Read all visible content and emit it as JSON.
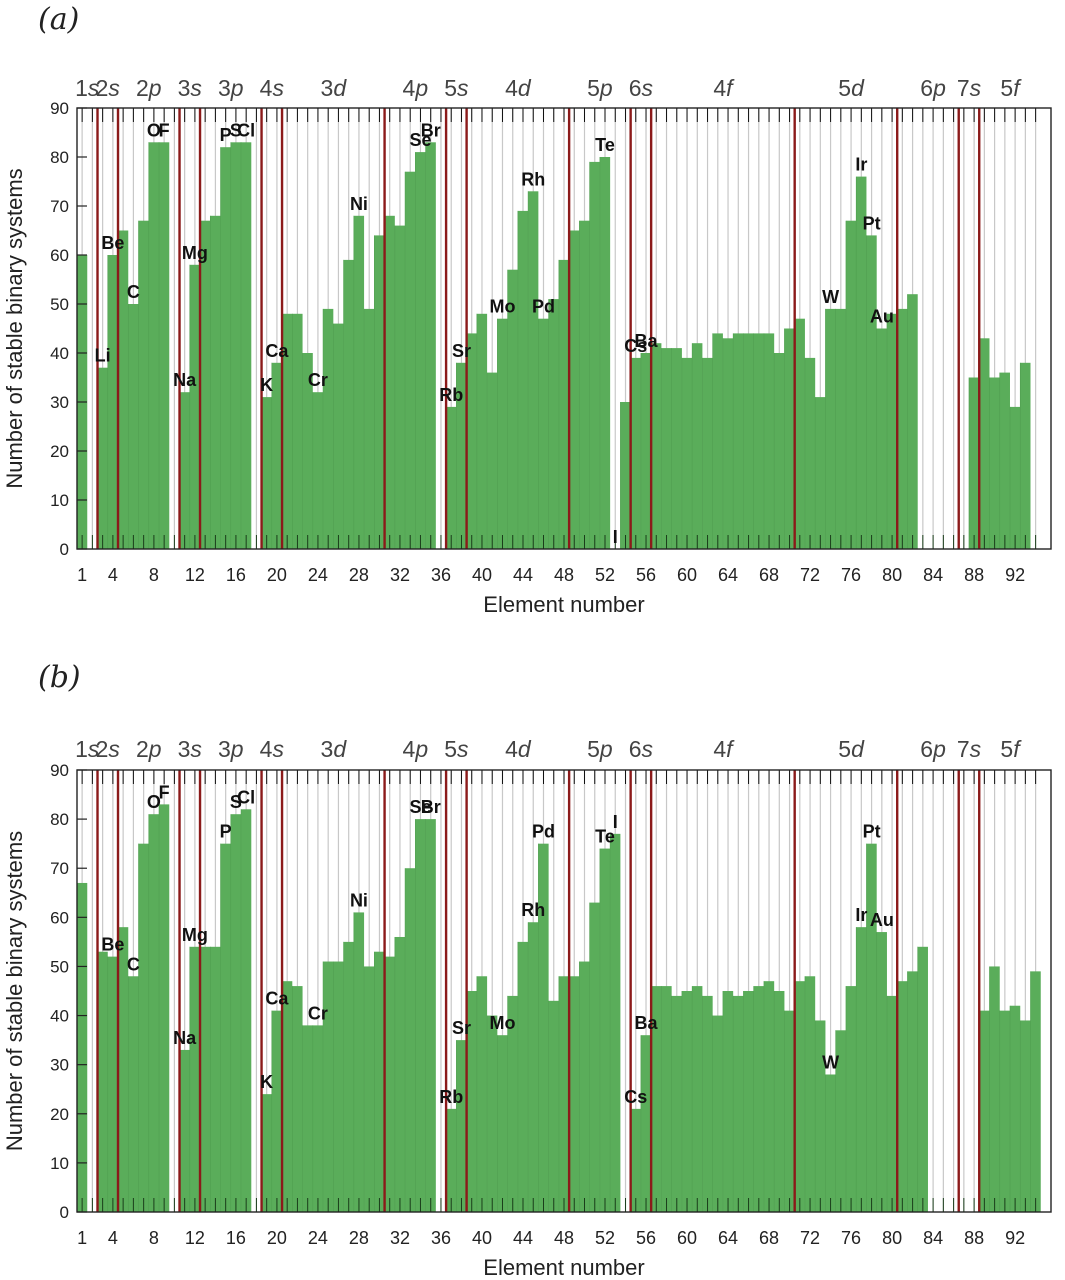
{
  "panels": [
    {
      "label": "(a)"
    },
    {
      "label": "(b)"
    }
  ],
  "chart_data": [
    {
      "type": "bar",
      "panel": "(a)",
      "title": "",
      "xlabel": "Element number",
      "ylabel": "Number of stable binary systems",
      "ylim": [
        0,
        90
      ],
      "yticks": [
        0,
        10,
        20,
        30,
        40,
        50,
        60,
        70,
        80,
        90
      ],
      "xticks": [
        1,
        4,
        8,
        12,
        16,
        20,
        24,
        28,
        32,
        36,
        40,
        44,
        48,
        52,
        56,
        60,
        64,
        68,
        72,
        76,
        80,
        84,
        88,
        92
      ],
      "bar_color": "#5aad5a",
      "shell_boundary_color": "#8b1a1a",
      "shell_boundaries_after_element": [
        2,
        4,
        10,
        12,
        18,
        20,
        30,
        36,
        38,
        48,
        54,
        56,
        70,
        80,
        86,
        88
      ],
      "shell_labels": [
        {
          "text": "1s",
          "center": 1.5
        },
        {
          "text": "2s",
          "center": 3.5
        },
        {
          "text": "2p",
          "center": 7.5
        },
        {
          "text": "3s",
          "center": 11.5
        },
        {
          "text": "3p",
          "center": 15.5
        },
        {
          "text": "4s",
          "center": 19.5
        },
        {
          "text": "3d",
          "center": 25.5
        },
        {
          "text": "4p",
          "center": 33.5
        },
        {
          "text": "5s",
          "center": 37.5
        },
        {
          "text": "4d",
          "center": 43.5
        },
        {
          "text": "5p",
          "center": 51.5
        },
        {
          "text": "6s",
          "center": 55.5
        },
        {
          "text": "4f",
          "center": 63.5
        },
        {
          "text": "5d",
          "center": 76
        },
        {
          "text": "6p",
          "center": 84
        },
        {
          "text": "7s",
          "center": 87.5
        },
        {
          "text": "5f",
          "center": 91.5
        }
      ],
      "x": [
        1,
        2,
        3,
        4,
        5,
        6,
        7,
        8,
        9,
        10,
        11,
        12,
        13,
        14,
        15,
        16,
        17,
        18,
        19,
        20,
        21,
        22,
        23,
        24,
        25,
        26,
        27,
        28,
        29,
        30,
        31,
        32,
        33,
        34,
        35,
        36,
        37,
        38,
        39,
        40,
        41,
        42,
        43,
        44,
        45,
        46,
        47,
        48,
        49,
        50,
        51,
        52,
        53,
        54,
        55,
        56,
        57,
        58,
        59,
        60,
        61,
        62,
        63,
        64,
        65,
        66,
        67,
        68,
        69,
        70,
        71,
        72,
        73,
        74,
        75,
        76,
        77,
        78,
        79,
        80,
        81,
        82,
        83,
        84,
        85,
        86,
        87,
        88,
        89,
        90,
        91,
        92,
        93,
        94
      ],
      "values": [
        60,
        0,
        37,
        60,
        65,
        50,
        67,
        83,
        83,
        0,
        32,
        58,
        67,
        68,
        82,
        83,
        83,
        0,
        31,
        38,
        48,
        48,
        40,
        32,
        49,
        46,
        59,
        68,
        49,
        64,
        68,
        66,
        77,
        81,
        83,
        0,
        29,
        38,
        44,
        48,
        36,
        47,
        57,
        69,
        73,
        47,
        51,
        59,
        65,
        67,
        79,
        80,
        0,
        30,
        39,
        40,
        42,
        41,
        41,
        39,
        42,
        39,
        44,
        43,
        44,
        44,
        44,
        44,
        40,
        45,
        47,
        39,
        31,
        49,
        49,
        67,
        76,
        64,
        45,
        48,
        49,
        52,
        0,
        0,
        0,
        0,
        0,
        35,
        43,
        35,
        36,
        29,
        38,
        0
      ],
      "element_labels": [
        {
          "text": "Li",
          "x": 3
        },
        {
          "text": "Be",
          "x": 4
        },
        {
          "text": "C",
          "x": 6
        },
        {
          "text": "O",
          "x": 8
        },
        {
          "text": "F",
          "x": 9
        },
        {
          "text": "Na",
          "x": 11
        },
        {
          "text": "Mg",
          "x": 12
        },
        {
          "text": "P",
          "x": 15
        },
        {
          "text": "S",
          "x": 16
        },
        {
          "text": "Cl",
          "x": 17
        },
        {
          "text": "K",
          "x": 19
        },
        {
          "text": "Ca",
          "x": 20
        },
        {
          "text": "Cr",
          "x": 24
        },
        {
          "text": "Ni",
          "x": 28
        },
        {
          "text": "Se",
          "x": 34
        },
        {
          "text": "Br",
          "x": 35
        },
        {
          "text": "Rb",
          "x": 37
        },
        {
          "text": "Sr",
          "x": 38
        },
        {
          "text": "Mo",
          "x": 42
        },
        {
          "text": "Rh",
          "x": 45
        },
        {
          "text": "Pd",
          "x": 46
        },
        {
          "text": "Te",
          "x": 52
        },
        {
          "text": "I",
          "x": 53
        },
        {
          "text": "Cs",
          "x": 55
        },
        {
          "text": "Ba",
          "x": 56
        },
        {
          "text": "W",
          "x": 74
        },
        {
          "text": "Ir",
          "x": 77
        },
        {
          "text": "Pt",
          "x": 78
        },
        {
          "text": "Au",
          "x": 79
        }
      ]
    },
    {
      "type": "bar",
      "panel": "(b)",
      "title": "",
      "xlabel": "Element number",
      "ylabel": "Number of stable binary systems",
      "ylim": [
        0,
        90
      ],
      "yticks": [
        0,
        10,
        20,
        30,
        40,
        50,
        60,
        70,
        80,
        90
      ],
      "xticks": [
        1,
        4,
        8,
        12,
        16,
        20,
        24,
        28,
        32,
        36,
        40,
        44,
        48,
        52,
        56,
        60,
        64,
        68,
        72,
        76,
        80,
        84,
        88,
        92
      ],
      "bar_color": "#5aad5a",
      "shell_boundary_color": "#8b1a1a",
      "shell_boundaries_after_element": [
        2,
        4,
        10,
        12,
        18,
        20,
        30,
        36,
        38,
        48,
        54,
        56,
        70,
        80,
        86,
        88
      ],
      "shell_labels": [
        {
          "text": "1s",
          "center": 1.5
        },
        {
          "text": "2s",
          "center": 3.5
        },
        {
          "text": "2p",
          "center": 7.5
        },
        {
          "text": "3s",
          "center": 11.5
        },
        {
          "text": "3p",
          "center": 15.5
        },
        {
          "text": "4s",
          "center": 19.5
        },
        {
          "text": "3d",
          "center": 25.5
        },
        {
          "text": "4p",
          "center": 33.5
        },
        {
          "text": "5s",
          "center": 37.5
        },
        {
          "text": "4d",
          "center": 43.5
        },
        {
          "text": "5p",
          "center": 51.5
        },
        {
          "text": "6s",
          "center": 55.5
        },
        {
          "text": "4f",
          "center": 63.5
        },
        {
          "text": "5d",
          "center": 76
        },
        {
          "text": "6p",
          "center": 84
        },
        {
          "text": "7s",
          "center": 87.5
        },
        {
          "text": "5f",
          "center": 91.5
        }
      ],
      "x": [
        1,
        2,
        3,
        4,
        5,
        6,
        7,
        8,
        9,
        10,
        11,
        12,
        13,
        14,
        15,
        16,
        17,
        18,
        19,
        20,
        21,
        22,
        23,
        24,
        25,
        26,
        27,
        28,
        29,
        30,
        31,
        32,
        33,
        34,
        35,
        36,
        37,
        38,
        39,
        40,
        41,
        42,
        43,
        44,
        45,
        46,
        47,
        48,
        49,
        50,
        51,
        52,
        53,
        54,
        55,
        56,
        57,
        58,
        59,
        60,
        61,
        62,
        63,
        64,
        65,
        66,
        67,
        68,
        69,
        70,
        71,
        72,
        73,
        74,
        75,
        76,
        77,
        78,
        79,
        80,
        81,
        82,
        83,
        84,
        85,
        86,
        87,
        88,
        89,
        90,
        91,
        92,
        93,
        94
      ],
      "values": [
        67,
        0,
        53,
        52,
        58,
        48,
        75,
        81,
        83,
        0,
        33,
        54,
        54,
        54,
        75,
        81,
        82,
        0,
        24,
        41,
        47,
        46,
        38,
        38,
        51,
        51,
        55,
        61,
        50,
        53,
        52,
        56,
        70,
        80,
        80,
        0,
        21,
        35,
        45,
        48,
        40,
        36,
        44,
        55,
        59,
        75,
        43,
        48,
        48,
        51,
        63,
        74,
        77,
        0,
        21,
        36,
        46,
        46,
        44,
        45,
        46,
        44,
        40,
        45,
        44,
        45,
        46,
        47,
        45,
        41,
        47,
        48,
        39,
        28,
        37,
        46,
        58,
        75,
        57,
        44,
        47,
        49,
        54,
        0,
        0,
        0,
        0,
        0,
        41,
        50,
        41,
        42,
        39,
        49
      ],
      "element_labels": [
        {
          "text": "Be",
          "x": 4
        },
        {
          "text": "C",
          "x": 6
        },
        {
          "text": "O",
          "x": 8
        },
        {
          "text": "F",
          "x": 9
        },
        {
          "text": "Na",
          "x": 11
        },
        {
          "text": "Mg",
          "x": 12
        },
        {
          "text": "P",
          "x": 15
        },
        {
          "text": "S",
          "x": 16
        },
        {
          "text": "Cl",
          "x": 17
        },
        {
          "text": "K",
          "x": 19
        },
        {
          "text": "Ca",
          "x": 20
        },
        {
          "text": "Cr",
          "x": 24
        },
        {
          "text": "Ni",
          "x": 28
        },
        {
          "text": "Se",
          "x": 34
        },
        {
          "text": "Br",
          "x": 35
        },
        {
          "text": "Rb",
          "x": 37
        },
        {
          "text": "Sr",
          "x": 38
        },
        {
          "text": "Mo",
          "x": 42
        },
        {
          "text": "Rh",
          "x": 45
        },
        {
          "text": "Pd",
          "x": 46
        },
        {
          "text": "Te",
          "x": 52
        },
        {
          "text": "I",
          "x": 53
        },
        {
          "text": "Cs",
          "x": 55
        },
        {
          "text": "Ba",
          "x": 56
        },
        {
          "text": "W",
          "x": 74
        },
        {
          "text": "Ir",
          "x": 77
        },
        {
          "text": "Pt",
          "x": 78
        },
        {
          "text": "Au",
          "x": 79
        }
      ]
    }
  ]
}
